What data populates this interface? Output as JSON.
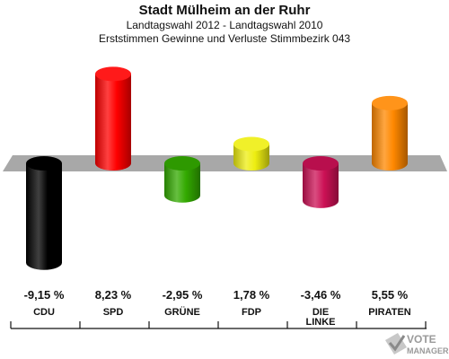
{
  "header": {
    "title": "Stadt Mülheim an der Ruhr",
    "subtitle": "Landtagswahl 2012 - Landtagswahl 2010",
    "subtitle2": "Erststimmen Gewinne und Verluste Stimmbezirk 043"
  },
  "chart_data": {
    "type": "bar",
    "categories": [
      "CDU",
      "SPD",
      "GRÜNE",
      "FDP",
      "DIE LINKE",
      "PIRATEN"
    ],
    "category_lines": [
      [
        "CDU"
      ],
      [
        "SPD"
      ],
      [
        "GRÜNE"
      ],
      [
        "FDP"
      ],
      [
        "DIE",
        "LINKE"
      ],
      [
        "PIRATEN"
      ]
    ],
    "values": [
      -9.15,
      8.23,
      -2.95,
      1.78,
      -3.46,
      5.55
    ],
    "value_labels": [
      "-9,15 %",
      "8,23 %",
      "-2,95 %",
      "1,78 %",
      "-3,46 %",
      "5,55 %"
    ],
    "colors": [
      "#000000",
      "#ff0000",
      "#33aa00",
      "#eeee11",
      "#cc1155",
      "#ff8800"
    ],
    "baseline": 0,
    "grid": false,
    "legend": "none"
  },
  "watermark": {
    "brand": "VOTE",
    "subtitle": "MANAGER"
  }
}
